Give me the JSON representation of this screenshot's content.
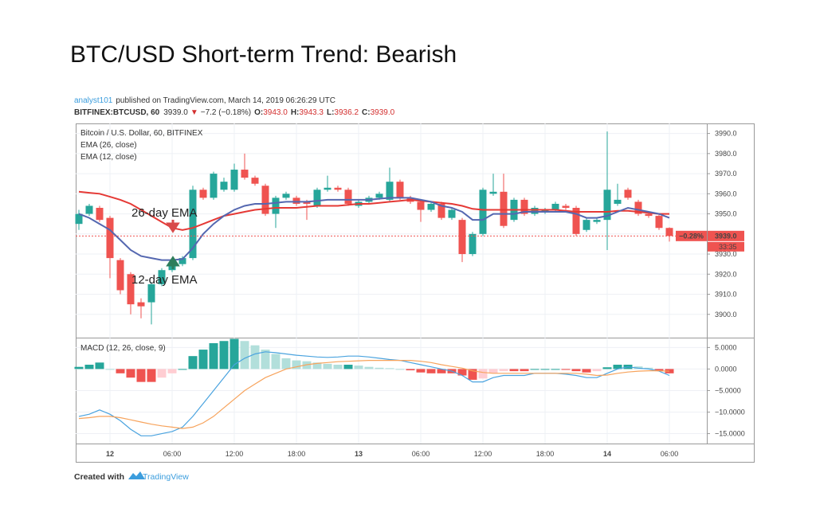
{
  "header": {
    "title": "BTC/USD Short-term Trend: Bearish",
    "author": "analyst101",
    "published": "published on TradingView.com, March 14, 2019 06:26:29 UTC",
    "symbol": "BITFINEX:BTCUSD, 60",
    "price": "3939.0",
    "arrow": "▼",
    "change": "−7.2 (−0.18%)",
    "ohlc": [
      {
        "key": "O:",
        "value": "3943.0"
      },
      {
        "key": "H:",
        "value": "3943.3"
      },
      {
        "key": "L:",
        "value": "3936.2"
      },
      {
        "key": "C:",
        "value": "3939.0"
      }
    ]
  },
  "chart_data": [
    {
      "type": "candlestick",
      "title": "Bitcoin / U.S. Dollar, 60, BITFINEX",
      "categories": [
        null,
        null,
        null,
        "12",
        null,
        null,
        null,
        null,
        null,
        "06:00",
        null,
        null,
        null,
        null,
        null,
        "12:00",
        null,
        null,
        null,
        null,
        null,
        "18:00",
        null,
        null,
        null,
        null,
        null,
        "13",
        null,
        null,
        null,
        null,
        null,
        "06:00",
        null,
        null,
        null,
        null,
        null,
        "12:00",
        null,
        null,
        null,
        null,
        null,
        "18:00",
        null,
        null,
        null,
        null,
        null,
        "14",
        null,
        null,
        null,
        null,
        null,
        "06:00"
      ],
      "open": [
        3945,
        3950,
        3953,
        3948,
        3927,
        3920,
        3906,
        3906,
        3915,
        3922,
        3925,
        3928,
        3962,
        3958,
        3962,
        3962,
        3972,
        3968,
        3964,
        3950,
        3958,
        3958,
        3956,
        3954,
        3962,
        3963,
        3962,
        3954,
        3956,
        3958,
        3957,
        3966,
        3958,
        3956,
        3952,
        3955,
        3948,
        3947,
        3930,
        3940,
        3960,
        3961,
        3947,
        3957,
        3950,
        3951,
        3952,
        3954,
        3953,
        3942,
        3946,
        3947,
        3955,
        3962,
        3956,
        3950,
        3949,
        3943
      ],
      "high": [
        3952,
        3955,
        3954,
        3949,
        3928,
        3921,
        3908,
        3916,
        3923,
        3927,
        3929,
        3964,
        3963,
        3971,
        3968,
        3975,
        3980,
        3969,
        3965,
        3959,
        3961,
        3959,
        3957,
        3963,
        3969,
        3964,
        3963,
        3957,
        3959,
        3961,
        3973,
        3967,
        3959,
        3957,
        3956,
        3956,
        3953,
        3948,
        3941,
        3963,
        3970,
        3970,
        3958,
        3958,
        3954,
        3953,
        3956,
        3955,
        3954,
        3948,
        3948,
        3991,
        3965,
        3963,
        3957,
        3951,
        3950,
        3943.3
      ],
      "low": [
        3942,
        3949,
        3946,
        3918,
        3910,
        3900,
        3898,
        3895,
        3914,
        3921,
        3924,
        3927,
        3957,
        3957,
        3961,
        3961,
        3967,
        3964,
        3949,
        3943,
        3957,
        3954,
        3947,
        3953,
        3961,
        3961,
        3954,
        3953,
        3955,
        3957,
        3956,
        3957,
        3955,
        3946,
        3951,
        3947,
        3947,
        3926,
        3929,
        3939,
        3959,
        3943,
        3946,
        3949,
        3949,
        3950,
        3951,
        3952,
        3939,
        3941,
        3945,
        3932,
        3954,
        3957,
        3949,
        3948,
        3942,
        3936.2
      ],
      "close": [
        3950,
        3954,
        3947,
        3928,
        3912,
        3905,
        3904,
        3915,
        3922,
        3926,
        3928,
        3962,
        3958,
        3970,
        3966,
        3972,
        3968,
        3965,
        3950,
        3958,
        3960,
        3955,
        3955,
        3962,
        3963,
        3962,
        3955,
        3956,
        3958,
        3960,
        3966,
        3958,
        3956,
        3952,
        3955,
        3948,
        3952,
        3930,
        3940,
        3962,
        3961,
        3944,
        3957,
        3950,
        3953,
        3952,
        3955,
        3953,
        3940,
        3947,
        3947,
        3962,
        3957,
        3958,
        3950,
        3949,
        3943,
        3939
      ],
      "up_color": "#26a69a",
      "down_color": "#ef5350",
      "series": [
        {
          "name": "EMA (26, close)",
          "color": "#e53935",
          "values": [
            3961,
            3960.5,
            3960,
            3958.5,
            3957,
            3955,
            3952,
            3949,
            3946,
            3943,
            3942,
            3943,
            3945,
            3947,
            3949,
            3950,
            3951,
            3952,
            3952.5,
            3953,
            3953,
            3953,
            3953.5,
            3954,
            3954,
            3954,
            3954.5,
            3955,
            3955,
            3955.5,
            3956,
            3956.5,
            3957,
            3956.5,
            3956,
            3955.5,
            3955,
            3954,
            3952.5,
            3952,
            3952,
            3952,
            3952,
            3952,
            3952,
            3952,
            3952,
            3951.5,
            3951,
            3951,
            3951,
            3951,
            3951.5,
            3951.5,
            3951,
            3950.5,
            3950,
            3950
          ]
        },
        {
          "name": "EMA (12, close)",
          "color": "#5467b0",
          "values": [
            3950,
            3948,
            3945,
            3942,
            3937,
            3932,
            3929,
            3928,
            3927,
            3927,
            3927.5,
            3933,
            3940,
            3945,
            3949,
            3952,
            3954,
            3955,
            3955,
            3955.5,
            3956,
            3956,
            3956,
            3956.5,
            3957,
            3957,
            3957,
            3957,
            3957,
            3957.5,
            3958,
            3958,
            3958,
            3957,
            3956,
            3954,
            3953,
            3951,
            3947,
            3947,
            3950,
            3950,
            3950,
            3951,
            3951,
            3951,
            3951,
            3951,
            3950,
            3948,
            3948,
            3949,
            3951,
            3953,
            3952,
            3951,
            3950,
            3948
          ]
        }
      ],
      "ylim": [
        3890,
        3995
      ],
      "yticks": [
        {
          "value": 3900,
          "label": "3900.0"
        },
        {
          "value": 3910,
          "label": "3910.0"
        },
        {
          "value": 3920,
          "label": "3920.0"
        },
        {
          "value": 3930,
          "label": "3930.0"
        },
        {
          "value": 3940,
          "label": "3940.0"
        },
        {
          "value": 3950,
          "label": "3950.0"
        },
        {
          "value": 3960,
          "label": "3960.0"
        },
        {
          "value": 3970,
          "label": "3970.0"
        },
        {
          "value": 3980,
          "label": "3980.0"
        },
        {
          "value": 3990,
          "label": "3990.0"
        }
      ],
      "grid": true,
      "last_price": {
        "value": 3939,
        "label": "3939.0"
      },
      "change_tag": "−0.28%",
      "countdown": "33:35",
      "annotations": [
        "26-day EMA",
        "12-day EMA"
      ]
    },
    {
      "type": "macd",
      "title": "MACD (12, 26, close, 9)",
      "histogram": [
        0.5,
        1,
        1.5,
        0,
        -1,
        -2,
        -3,
        -3,
        -2,
        -1,
        0,
        3,
        4.5,
        6,
        6.5,
        7,
        6.5,
        5.5,
        4.5,
        3.5,
        2.5,
        2,
        1.8,
        1.5,
        1.2,
        1,
        1,
        0.8,
        0.5,
        0.3,
        0.2,
        0,
        -0.3,
        -0.8,
        -1,
        -1,
        -1,
        -1.5,
        -2.5,
        -2.2,
        -1,
        -0.5,
        -0.5,
        -0.5,
        0,
        0,
        0,
        -0.2,
        -0.5,
        -0.8,
        -0.5,
        0.4,
        1,
        1,
        0.6,
        0.3,
        -0.5,
        -1
      ],
      "histogram_colors": [
        "#26a69a",
        "#b2dfdb",
        "#ef5350",
        "#ffcdd2"
      ],
      "series": [
        {
          "color": "#4aa3df",
          "values": [
            -11,
            -10.5,
            -9.5,
            -10.5,
            -12,
            -14,
            -15.5,
            -15.5,
            -15,
            -14.5,
            -13.5,
            -11,
            -8,
            -5,
            -2,
            1,
            2.5,
            3.5,
            4,
            3.8,
            3.5,
            3.2,
            3,
            2.8,
            2.7,
            2.8,
            3,
            3,
            2.8,
            2.5,
            2.2,
            2,
            1.5,
            1,
            0.5,
            0,
            -0.5,
            -1.5,
            -3,
            -3,
            -2,
            -1.5,
            -1.5,
            -1.5,
            -1,
            -1,
            -1,
            -1.2,
            -1.5,
            -2,
            -2,
            -1,
            0,
            0.5,
            0.2,
            0,
            -0.5,
            -1.5
          ]
        },
        {
          "color": "#f7a35c",
          "values": [
            -11.5,
            -11.3,
            -11,
            -11,
            -11.3,
            -11.8,
            -12.3,
            -12.8,
            -13.2,
            -13.5,
            -13.8,
            -13.5,
            -12.5,
            -11,
            -9,
            -7,
            -5,
            -3.5,
            -2,
            -1,
            0,
            0.5,
            1,
            1.3,
            1.5,
            1.7,
            1.8,
            1.9,
            2,
            2,
            2,
            2,
            2,
            1.8,
            1.5,
            1,
            0.6,
            0.2,
            -0.4,
            -0.8,
            -1,
            -1,
            -1,
            -1,
            -1,
            -1,
            -1,
            -1,
            -1,
            -1.2,
            -1.5,
            -1.4,
            -1,
            -0.7,
            -0.5,
            -0.4,
            -0.4,
            -0.5
          ]
        }
      ],
      "ylim": [
        -17.3,
        7.1
      ],
      "yticks": [
        {
          "value": 5,
          "label": "5.0000"
        },
        {
          "value": 0,
          "label": "0.0000"
        },
        {
          "value": -5,
          "label": "−5.0000"
        },
        {
          "value": -10,
          "label": "−10.0000"
        },
        {
          "value": -15,
          "label": "−15.0000"
        }
      ],
      "grid": true
    }
  ],
  "footer": {
    "created": "Created with",
    "brand": "TradingView"
  }
}
